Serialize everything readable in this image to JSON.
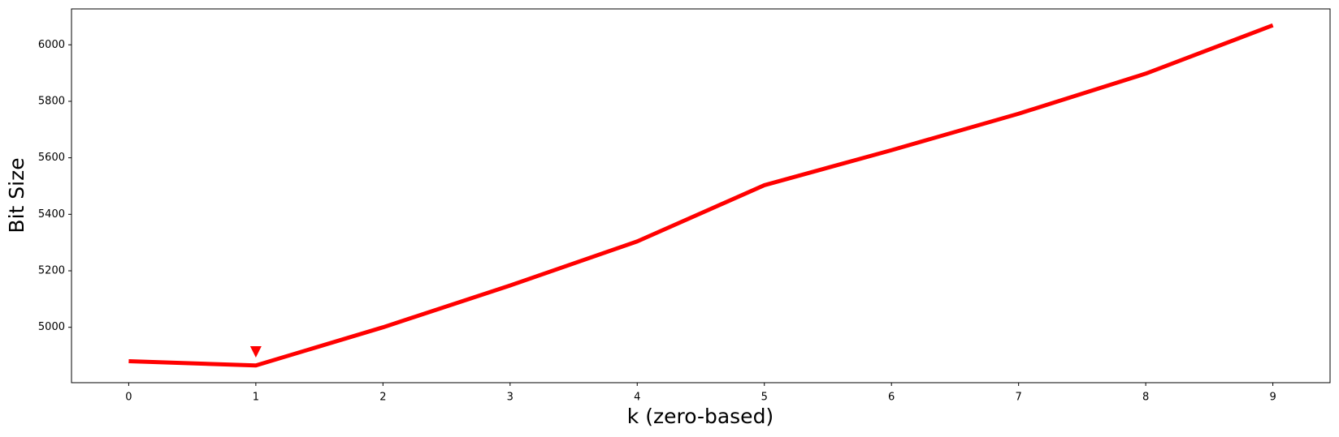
{
  "chart_data": {
    "type": "line",
    "x_label": "k (zero-based)",
    "y_label": "Bit Size",
    "x": [
      0,
      1,
      2,
      3,
      4,
      5,
      6,
      7,
      8,
      9
    ],
    "series": [
      {
        "color": "#ff0000",
        "values": [
          4880,
          4865,
          5000,
          5148,
          5304,
          5503,
          5627,
          5756,
          5898,
          6069
        ]
      }
    ],
    "marker": {
      "x": 1,
      "y": 4913,
      "color": "#ff0000",
      "shape": "triangle-down"
    },
    "xlim": [
      -0.45,
      9.45
    ],
    "ylim": [
      4804,
      6127
    ],
    "xticks": [
      0,
      1,
      2,
      3,
      4,
      5,
      6,
      7,
      8,
      9
    ],
    "yticks": [
      5000,
      5200,
      5400,
      5600,
      5800,
      6000
    ],
    "grid": false
  }
}
